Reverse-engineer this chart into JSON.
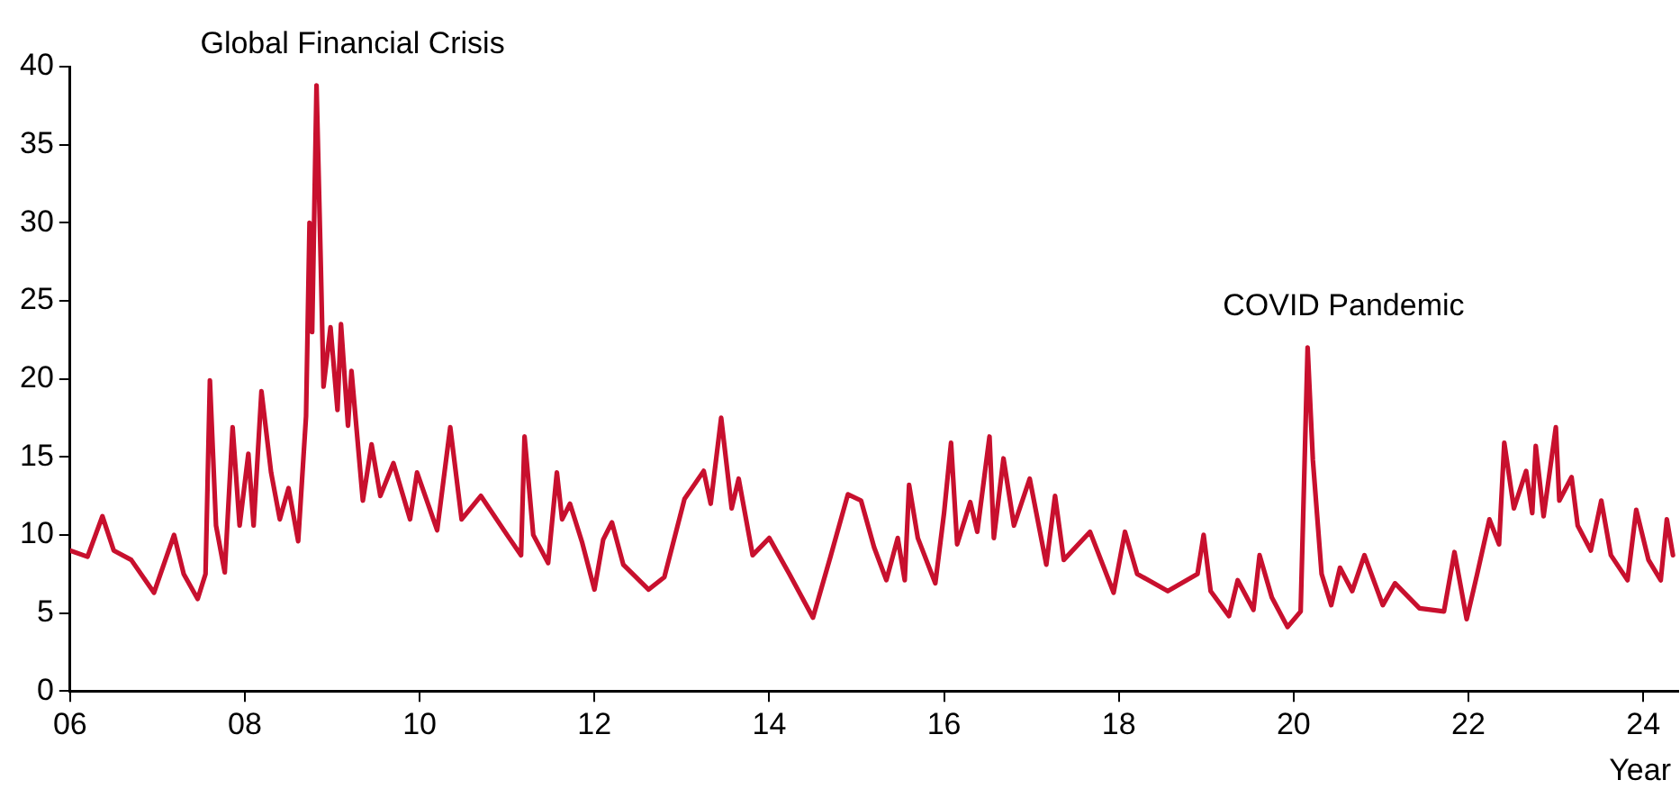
{
  "chart_data": {
    "type": "line",
    "xlabel": "Year",
    "x": [
      2006.0,
      2006.2,
      2006.37,
      2006.5,
      2006.7,
      2006.96,
      2007.19,
      2007.3,
      2007.46,
      2007.55,
      2007.6,
      2007.67,
      2007.77,
      2007.86,
      2007.94,
      2008.04,
      2008.1,
      2008.19,
      2008.3,
      2008.4,
      2008.5,
      2008.61,
      2008.7,
      2008.74,
      2008.77,
      2008.82,
      2008.87,
      2008.9,
      2008.98,
      2009.06,
      2009.1,
      2009.18,
      2009.22,
      2009.35,
      2009.45,
      2009.55,
      2009.7,
      2009.89,
      2009.97,
      2010.2,
      2010.35,
      2010.48,
      2010.7,
      2011.0,
      2011.16,
      2011.2,
      2011.3,
      2011.47,
      2011.57,
      2011.63,
      2011.72,
      2011.86,
      2012.0,
      2012.1,
      2012.2,
      2012.33,
      2012.62,
      2012.8,
      2013.03,
      2013.25,
      2013.33,
      2013.45,
      2013.57,
      2013.65,
      2013.81,
      2014.0,
      2014.23,
      2014.5,
      2014.7,
      2014.9,
      2015.05,
      2015.2,
      2015.34,
      2015.47,
      2015.55,
      2015.6,
      2015.7,
      2015.9,
      2016.0,
      2016.08,
      2016.15,
      2016.3,
      2016.38,
      2016.52,
      2016.57,
      2016.68,
      2016.8,
      2016.98,
      2017.17,
      2017.27,
      2017.37,
      2017.67,
      2017.94,
      2018.07,
      2018.21,
      2018.56,
      2018.9,
      2018.97,
      2019.05,
      2019.26,
      2019.36,
      2019.54,
      2019.61,
      2019.75,
      2019.93,
      2020.08,
      2020.16,
      2020.22,
      2020.32,
      2020.43,
      2020.53,
      2020.67,
      2020.81,
      2021.02,
      2021.16,
      2021.44,
      2021.72,
      2021.84,
      2021.98,
      2022.1,
      2022.24,
      2022.35,
      2022.41,
      2022.52,
      2022.66,
      2022.73,
      2022.77,
      2022.86,
      2023.0,
      2023.04,
      2023.18,
      2023.25,
      2023.4,
      2023.52,
      2023.63,
      2023.82,
      2023.92,
      2024.06,
      2024.2,
      2024.27,
      2024.34
    ],
    "series": [
      {
        "color": "#c8102e",
        "values": [
          9.0,
          8.6,
          11.2,
          9.0,
          8.4,
          6.3,
          10.0,
          7.5,
          5.9,
          7.5,
          19.9,
          10.6,
          7.6,
          16.9,
          10.6,
          15.2,
          10.6,
          19.2,
          14.0,
          11.0,
          13.0,
          9.6,
          17.6,
          30.0,
          23.0,
          38.8,
          27.0,
          19.5,
          23.3,
          18.0,
          23.5,
          17.0,
          20.5,
          12.2,
          15.8,
          12.5,
          14.6,
          11.0,
          14.0,
          10.3,
          16.9,
          11.0,
          12.5,
          10.0,
          8.7,
          16.3,
          10.0,
          8.2,
          14.0,
          11.0,
          12.0,
          9.5,
          6.5,
          9.7,
          10.8,
          8.1,
          6.5,
          7.3,
          12.3,
          14.1,
          12.0,
          17.5,
          11.7,
          13.6,
          8.7,
          9.8,
          7.5,
          4.7,
          8.6,
          12.6,
          12.2,
          9.2,
          7.1,
          9.8,
          7.1,
          13.2,
          9.8,
          6.9,
          11.4,
          15.9,
          9.4,
          12.1,
          10.2,
          16.3,
          9.8,
          14.9,
          10.6,
          13.6,
          8.1,
          12.5,
          8.4,
          10.2,
          6.3,
          10.2,
          7.5,
          6.4,
          7.5,
          10.0,
          6.4,
          4.8,
          7.1,
          5.2,
          8.7,
          6.0,
          4.1,
          5.1,
          22.0,
          14.8,
          7.5,
          5.5,
          7.9,
          6.4,
          8.7,
          5.5,
          6.9,
          5.3,
          5.1,
          8.9,
          4.6,
          7.5,
          11.0,
          9.4,
          15.9,
          11.7,
          14.1,
          11.4,
          15.7,
          11.2,
          16.9,
          12.2,
          13.7,
          10.6,
          9.0,
          12.2,
          8.7,
          7.1,
          11.6,
          8.4,
          7.1,
          11.0,
          8.7
        ]
      }
    ],
    "xlim": [
      2006,
      2024.4
    ],
    "xticks": [
      {
        "value": 2006,
        "label": "06"
      },
      {
        "value": 2008,
        "label": "08"
      },
      {
        "value": 2010,
        "label": "10"
      },
      {
        "value": 2012,
        "label": "12"
      },
      {
        "value": 2014,
        "label": "14"
      },
      {
        "value": 2016,
        "label": "16"
      },
      {
        "value": 2018,
        "label": "18"
      },
      {
        "value": 2020,
        "label": "20"
      },
      {
        "value": 2022,
        "label": "22"
      },
      {
        "value": 2024,
        "label": "24"
      }
    ],
    "ylim": [
      0,
      40
    ],
    "yticks": [
      0,
      5,
      10,
      15,
      20,
      25,
      30,
      35,
      40
    ],
    "annotations": [
      {
        "text": "Global Financial Crisis",
        "x": 2008.82,
        "y": 38.8
      },
      {
        "text": "COVID Pandemic",
        "x": 2020.16,
        "y": 22.0
      }
    ]
  }
}
